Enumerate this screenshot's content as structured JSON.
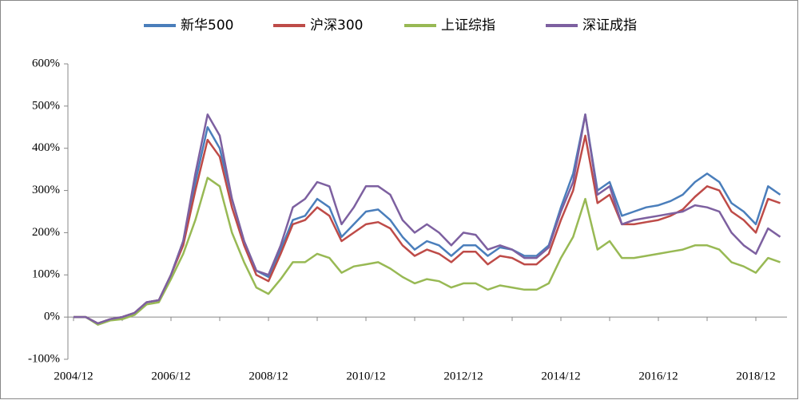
{
  "chart_data": {
    "type": "line",
    "x": [
      "2004/12",
      "2005/03",
      "2005/06",
      "2005/09",
      "2005/12",
      "2006/03",
      "2006/06",
      "2006/09",
      "2006/12",
      "2007/03",
      "2007/06",
      "2007/09",
      "2007/12",
      "2008/03",
      "2008/06",
      "2008/09",
      "2008/12",
      "2009/03",
      "2009/06",
      "2009/09",
      "2009/12",
      "2010/03",
      "2010/06",
      "2010/09",
      "2010/12",
      "2011/03",
      "2011/06",
      "2011/09",
      "2011/12",
      "2012/03",
      "2012/06",
      "2012/09",
      "2012/12",
      "2013/03",
      "2013/06",
      "2013/09",
      "2013/12",
      "2014/03",
      "2014/06",
      "2014/09",
      "2014/12",
      "2015/03",
      "2015/06",
      "2015/09",
      "2015/12",
      "2016/03",
      "2016/06",
      "2016/09",
      "2016/12",
      "2017/03",
      "2017/06",
      "2017/09",
      "2017/12",
      "2018/03",
      "2018/06",
      "2018/09",
      "2018/12",
      "2019/03",
      "2019/06"
    ],
    "series": [
      {
        "name": "新华500",
        "color": "#4a7ebb",
        "values": [
          0,
          0,
          -15,
          -5,
          0,
          10,
          35,
          40,
          100,
          180,
          320,
          450,
          400,
          280,
          180,
          110,
          95,
          160,
          230,
          240,
          280,
          260,
          190,
          220,
          250,
          255,
          230,
          190,
          160,
          180,
          170,
          145,
          170,
          170,
          145,
          165,
          160,
          145,
          145,
          170,
          260,
          340,
          480,
          300,
          320,
          240,
          250,
          260,
          265,
          275,
          290,
          320,
          340,
          320,
          270,
          250,
          220,
          310,
          290
        ]
      },
      {
        "name": "沪深300",
        "color": "#be4b48",
        "values": [
          0,
          0,
          -15,
          -5,
          0,
          10,
          35,
          40,
          100,
          170,
          300,
          420,
          380,
          260,
          170,
          100,
          85,
          150,
          220,
          230,
          260,
          240,
          180,
          200,
          220,
          225,
          210,
          170,
          145,
          160,
          150,
          130,
          155,
          155,
          125,
          145,
          140,
          125,
          125,
          150,
          230,
          300,
          430,
          270,
          290,
          220,
          220,
          225,
          230,
          240,
          255,
          285,
          310,
          300,
          250,
          230,
          200,
          280,
          270
        ]
      },
      {
        "name": "上证综指",
        "color": "#98b954",
        "values": [
          0,
          0,
          -18,
          -8,
          -5,
          5,
          30,
          35,
          90,
          150,
          230,
          330,
          310,
          200,
          130,
          70,
          55,
          90,
          130,
          130,
          150,
          140,
          105,
          120,
          125,
          130,
          115,
          95,
          80,
          90,
          85,
          70,
          80,
          80,
          65,
          75,
          70,
          65,
          65,
          80,
          140,
          190,
          280,
          160,
          180,
          140,
          140,
          145,
          150,
          155,
          160,
          170,
          170,
          160,
          130,
          120,
          105,
          140,
          130
        ]
      },
      {
        "name": "深证成指",
        "color": "#7d60a0",
        "values": [
          0,
          0,
          -15,
          -5,
          0,
          10,
          35,
          40,
          100,
          180,
          340,
          480,
          430,
          280,
          180,
          110,
          100,
          170,
          260,
          280,
          320,
          310,
          220,
          260,
          310,
          310,
          290,
          230,
          200,
          220,
          200,
          170,
          200,
          195,
          160,
          170,
          160,
          140,
          140,
          165,
          250,
          320,
          480,
          290,
          310,
          220,
          230,
          235,
          240,
          245,
          250,
          265,
          260,
          250,
          200,
          170,
          150,
          210,
          190
        ]
      }
    ],
    "xticks": [
      "2004/12",
      "2006/12",
      "2008/12",
      "2010/12",
      "2012/12",
      "2014/12",
      "2016/12",
      "2018/12"
    ],
    "ylim": [
      -100,
      600
    ],
    "yticks": [
      {
        "value": -100,
        "label": "-100%"
      },
      {
        "value": 0,
        "label": "0%"
      },
      {
        "value": 100,
        "label": "100%"
      },
      {
        "value": 200,
        "label": "200%"
      },
      {
        "value": 300,
        "label": "300%"
      },
      {
        "value": 400,
        "label": "400%"
      },
      {
        "value": 500,
        "label": "500%"
      },
      {
        "value": 600,
        "label": "600%"
      }
    ],
    "legend": "top"
  }
}
